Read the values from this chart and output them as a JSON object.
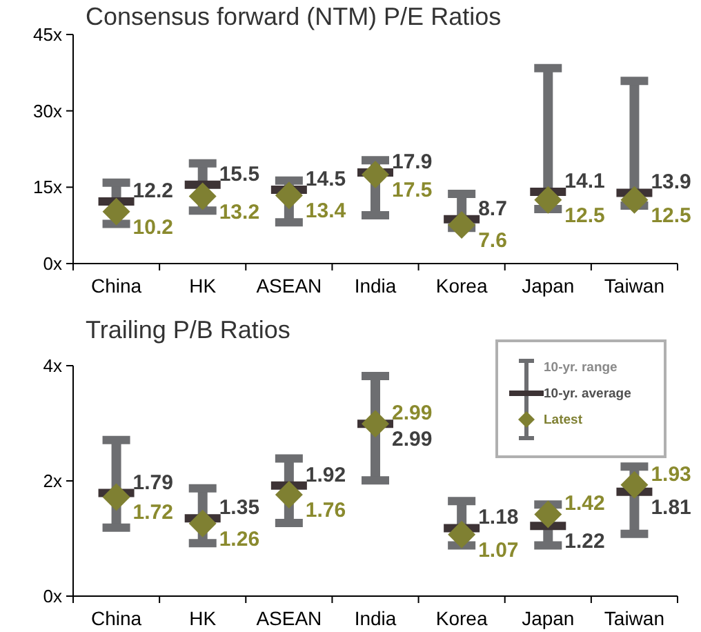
{
  "chart_data": [
    {
      "type": "box",
      "title": "Consensus forward (NTM) P/E Ratios",
      "categories": [
        "China",
        "HK",
        "ASEAN",
        "India",
        "Korea",
        "Japan",
        "Taiwan"
      ],
      "ylim": [
        0,
        45
      ],
      "yticks": [
        {
          "value": 0,
          "label": "0x"
        },
        {
          "value": 15,
          "label": "15x"
        },
        {
          "value": 30,
          "label": "30x"
        },
        {
          "value": 45,
          "label": "45x"
        }
      ],
      "legend": false,
      "data_labels": true,
      "annotations": [
        {
          "text": "12.2",
          "x": "China",
          "y": 12.2
        },
        {
          "text": "15.5",
          "x": "HK",
          "y": 15.5
        },
        {
          "text": "14.5",
          "x": "ASEAN",
          "y": 14.5
        },
        {
          "text": "17.9",
          "x": "India",
          "y": 17.9
        },
        {
          "text": "8.7",
          "x": "Korea",
          "y": 8.7
        },
        {
          "text": "14.1",
          "x": "Japan",
          "y": 14.1
        },
        {
          "text": "13.9",
          "x": "Taiwan",
          "y": 13.9
        }
      ],
      "series": [
        {
          "color": "#3d3335",
          "boxes": [
            {
              "low": 7.8,
              "q1": 12.2,
              "median": 12.2,
              "q3": 12.2,
              "high": 15.9
            },
            {
              "low": 10.4,
              "q1": 15.5,
              "median": 15.5,
              "q3": 15.5,
              "high": 19.7
            },
            {
              "low": 8.1,
              "q1": 14.5,
              "median": 14.5,
              "q3": 14.5,
              "high": 16.3
            },
            {
              "low": 9.5,
              "q1": 17.9,
              "median": 17.9,
              "q3": 17.9,
              "high": 20.3
            },
            {
              "low": 7.0,
              "q1": 8.7,
              "median": 8.7,
              "q3": 8.7,
              "high": 13.7
            },
            {
              "low": 10.7,
              "q1": 14.1,
              "median": 14.1,
              "q3": 14.1,
              "high": 38.4
            },
            {
              "low": 11.4,
              "q1": 13.9,
              "median": 13.9,
              "q3": 13.9,
              "high": 35.9
            }
          ]
        },
        {
          "type": "scatter",
          "marker": "diamond",
          "color": "#7f8032",
          "x": [
            "China",
            "HK",
            "ASEAN",
            "India",
            "Korea",
            "Japan",
            "Taiwan"
          ],
          "values": [
            10.2,
            13.2,
            13.4,
            17.5,
            7.6,
            12.5,
            12.5
          ]
        }
      ]
    },
    {
      "type": "box",
      "title": "Trailing P/B Ratios",
      "categories": [
        "China",
        "HK",
        "ASEAN",
        "India",
        "Korea",
        "Japan",
        "Taiwan"
      ],
      "ylim": [
        0,
        4
      ],
      "yticks": [
        {
          "value": 0,
          "label": "0x"
        },
        {
          "value": 2,
          "label": "2x"
        },
        {
          "value": 4,
          "label": "4x"
        }
      ],
      "legend": "top right",
      "data_labels": true,
      "annotations": [
        "10-yr. range",
        {
          "text": "1.79",
          "x": "China",
          "y": 1.79
        },
        {
          "text": "1.35",
          "x": "HK",
          "y": 1.35
        },
        {
          "text": "1.92",
          "x": "ASEAN",
          "y": 1.92
        },
        {
          "text": "2.99",
          "x": "India",
          "y": 2.99
        },
        {
          "text": "1.18",
          "x": "Korea",
          "y": 1.18
        },
        {
          "text": "1.22",
          "x": "Japan",
          "y": 1.22
        },
        {
          "text": "1.81",
          "x": "Taiwan",
          "y": 1.81
        }
      ],
      "series": [
        {
          "name": "10-yr. average",
          "color": "#3d3335",
          "boxes": [
            {
              "low": 1.19,
              "q1": 1.79,
              "median": 1.79,
              "q3": 1.79,
              "high": 2.71
            },
            {
              "low": 0.92,
              "q1": 1.35,
              "median": 1.35,
              "q3": 1.35,
              "high": 1.87
            },
            {
              "low": 1.27,
              "q1": 1.92,
              "median": 1.92,
              "q3": 1.92,
              "high": 2.39
            },
            {
              "low": 2.01,
              "q1": 2.99,
              "median": 2.99,
              "q3": 2.99,
              "high": 3.82
            },
            {
              "low": 0.88,
              "q1": 1.18,
              "median": 1.18,
              "q3": 1.18,
              "high": 1.65
            },
            {
              "low": 0.88,
              "q1": 1.22,
              "median": 1.22,
              "q3": 1.22,
              "high": 1.59
            },
            {
              "low": 1.08,
              "q1": 1.81,
              "median": 1.81,
              "q3": 1.81,
              "high": 2.25
            }
          ]
        },
        {
          "name": "Latest",
          "type": "scatter",
          "marker": "diamond",
          "color": "#7f8032",
          "x": [
            "China",
            "HK",
            "ASEAN",
            "India",
            "Korea",
            "Japan",
            "Taiwan"
          ],
          "values": [
            1.72,
            1.26,
            1.76,
            2.99,
            1.07,
            1.42,
            1.93
          ]
        }
      ]
    }
  ]
}
